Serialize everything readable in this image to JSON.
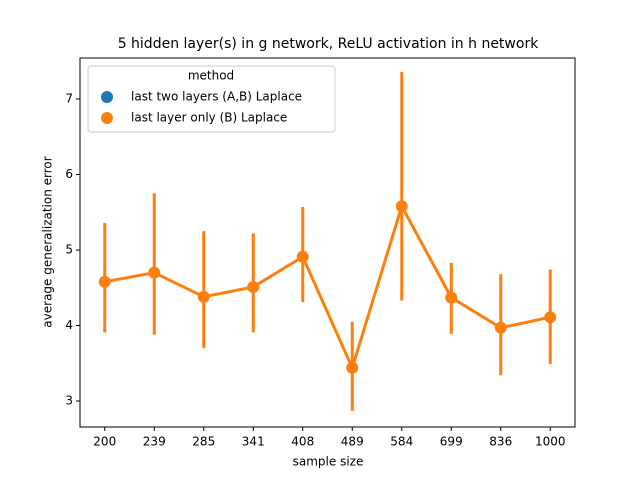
{
  "chart_data": {
    "type": "pointplot",
    "title": "5 hidden layer(s) in g network, ReLU activation in h network",
    "xlabel": "sample size",
    "ylabel": "average generalization error",
    "categories": [
      "200",
      "239",
      "285",
      "341",
      "408",
      "489",
      "584",
      "699",
      "836",
      "1000"
    ],
    "legend_title": "method",
    "legend_position": "upper left",
    "series": [
      {
        "name": "last two layers (A,B) Laplace",
        "color": "#1f77b4",
        "values": [
          null,
          null,
          null,
          null,
          null,
          null,
          null,
          null,
          null,
          null
        ],
        "lower": [
          null,
          null,
          null,
          null,
          null,
          null,
          null,
          null,
          null,
          null
        ],
        "upper": [
          null,
          null,
          null,
          null,
          null,
          null,
          null,
          null,
          null,
          null
        ]
      },
      {
        "name": "last layer only (B) Laplace",
        "color": "#ff7f0e",
        "values": [
          4.58,
          4.7,
          4.38,
          4.51,
          4.91,
          3.44,
          5.58,
          4.37,
          3.97,
          4.11
        ],
        "lower": [
          3.91,
          3.88,
          3.7,
          3.91,
          4.31,
          2.87,
          4.33,
          3.89,
          3.34,
          3.49
        ],
        "upper": [
          5.36,
          5.75,
          5.25,
          5.22,
          5.57,
          4.05,
          7.36,
          4.83,
          4.68,
          4.74
        ]
      }
    ],
    "ylim": [
      2.656,
      7.543
    ],
    "yticks": [
      3,
      4,
      5,
      6,
      7
    ]
  }
}
